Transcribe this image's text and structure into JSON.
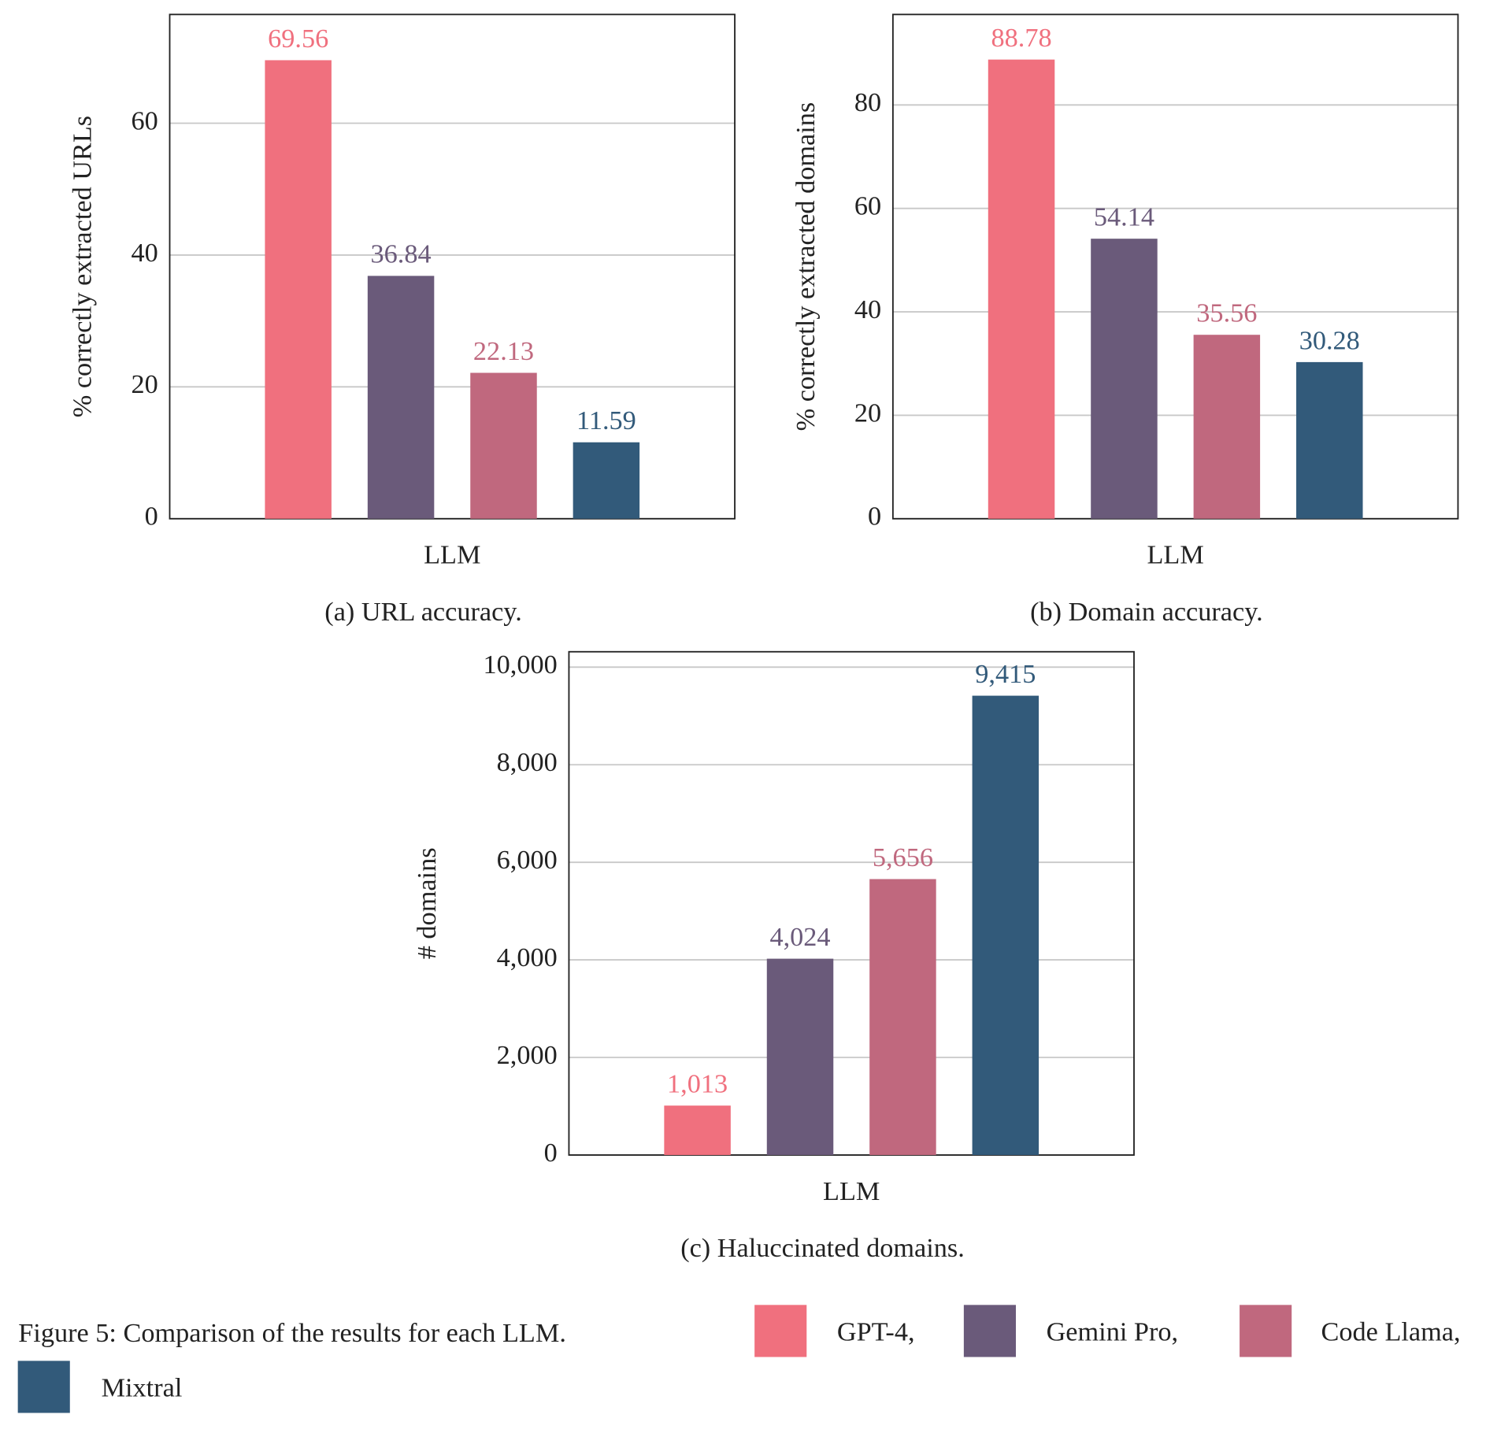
{
  "chart_data": [
    {
      "type": "bar",
      "ylabel": "% correctly extracted URLs",
      "xlabel": "LLM",
      "caption": "(a) URL accuracy.",
      "ylim": [
        0,
        76.5
      ],
      "yticks": [
        0,
        20,
        40,
        60
      ],
      "grid": true,
      "series": [
        {
          "color": "#f0707e",
          "values": [
            69.56
          ]
        },
        {
          "color": "#6a5a7a",
          "values": [
            36.84
          ]
        },
        {
          "color": "#c0687e",
          "values": [
            22.13
          ]
        },
        {
          "color": "#325a7a",
          "values": [
            11.59
          ]
        }
      ]
    },
    {
      "type": "bar",
      "ylabel": "% correctly extracted domains",
      "xlabel": "LLM",
      "caption": "(b) Domain accuracy.",
      "ylim": [
        0,
        97.5
      ],
      "yticks": [
        0,
        20,
        40,
        60,
        80
      ],
      "grid": true,
      "series": [
        {
          "color": "#f0707e",
          "values": [
            88.78
          ]
        },
        {
          "color": "#6a5a7a",
          "values": [
            54.14
          ]
        },
        {
          "color": "#c0687e",
          "values": [
            35.56
          ]
        },
        {
          "color": "#325a7a",
          "values": [
            30.28
          ]
        }
      ]
    },
    {
      "type": "bar",
      "ylabel": "# domains",
      "xlabel": "LLM",
      "caption": "(c) Haluccinated domains.",
      "ylim": [
        0,
        10316
      ],
      "yticks": [
        0,
        {
          "value": 2000,
          "label": "2,000"
        },
        {
          "value": 4000,
          "label": "4,000"
        },
        {
          "value": 6000,
          "label": "6,000"
        },
        {
          "value": 8000,
          "label": "8,000"
        },
        {
          "value": 10000,
          "label": "10,000"
        }
      ],
      "grid": true,
      "series": [
        {
          "color": "#f0707e",
          "values": [
            1013
          ],
          "value_labels": [
            "1,013"
          ]
        },
        {
          "color": "#6a5a7a",
          "values": [
            4024
          ],
          "value_labels": [
            "4,024"
          ]
        },
        {
          "color": "#c0687e",
          "values": [
            5656
          ],
          "value_labels": [
            "5,656"
          ]
        },
        {
          "color": "#325a7a",
          "values": [
            9415
          ],
          "value_labels": [
            "9,415"
          ]
        }
      ]
    }
  ],
  "figure": {
    "caption": "Figure 5: Comparison of the results for each LLM.",
    "legend": [
      {
        "label": "GPT-4,",
        "color": "#f0707e"
      },
      {
        "label": "Gemini Pro,",
        "color": "#6a5a7a"
      },
      {
        "label": "Code Llama,",
        "color": "#c0687e"
      },
      {
        "label": "Mixtral",
        "color": "#325a7a"
      }
    ]
  }
}
